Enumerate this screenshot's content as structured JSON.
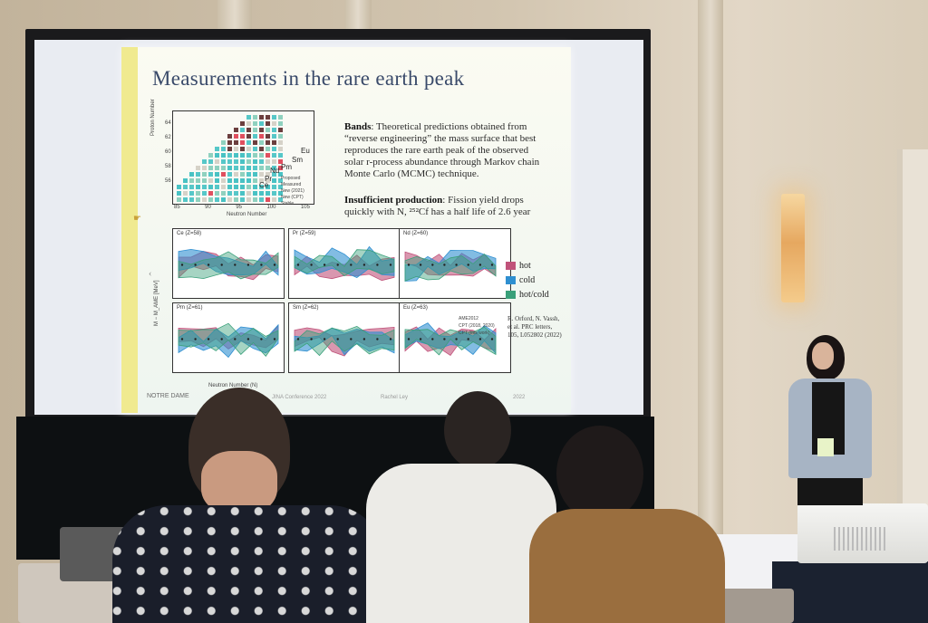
{
  "slide": {
    "title": "Measurements in the rare earth peak",
    "bands_label": "Bands",
    "bands_text": ": Theoretical predictions obtained from “reverse engineering” the mass surface that best reproduces the rare earth peak of the observed solar r-process abundance through Markov chain Monte Carlo (MCMC) technique.",
    "insufficient_label": "Insufficient production",
    "insufficient_text": ": Fission yield drops quickly with N, ²⁵²Cf has a half life of 2.6 year",
    "heatmap": {
      "ylabel": "Proton Number",
      "xlabel": "Neutron Number",
      "yticks": [
        "64",
        "62",
        "60",
        "58",
        "56"
      ],
      "xticks": [
        "85",
        "90",
        "95",
        "100",
        "105"
      ],
      "nuclides": [
        "Eu",
        "Sm",
        "Pm",
        "Nd",
        "Pr",
        "Ce"
      ],
      "legend": [
        "Proposed",
        "Measured",
        "New (2021)",
        "New (CPT)",
        "Stable"
      ]
    },
    "panels": [
      {
        "label": "Ce (Z=58)"
      },
      {
        "label": "Pr (Z=59)"
      },
      {
        "label": "Nd (Z=60)"
      },
      {
        "label": "Pm (Z=61)"
      },
      {
        "label": "Sm (Z=62)"
      },
      {
        "label": "Eu (Z=63)"
      }
    ],
    "ylabel": "M − M_AME [MeV]",
    "xlabel": "Neutron Number (N)",
    "legend": [
      {
        "label": "hot",
        "color": "#c0527a"
      },
      {
        "label": "cold",
        "color": "#2f8fd0"
      },
      {
        "label": "hot/cold",
        "color": "#3aa07a"
      }
    ],
    "data_legend": [
      "AME2012",
      "CPT (2018, 2020)",
      "CPT (this work)"
    ],
    "citation": "R. Orford, N. Vassh, et al. PRC letters, 105, L052802 (2022)",
    "footer": [
      "NOTRE DAME",
      "JINA Conference 2022",
      "Rachel Ley",
      "2022"
    ]
  },
  "colors": {
    "slide_title": "#3a4a6a",
    "hot": "#c0527a",
    "cold": "#2f8fd0",
    "hotcold": "#3aa07a"
  }
}
